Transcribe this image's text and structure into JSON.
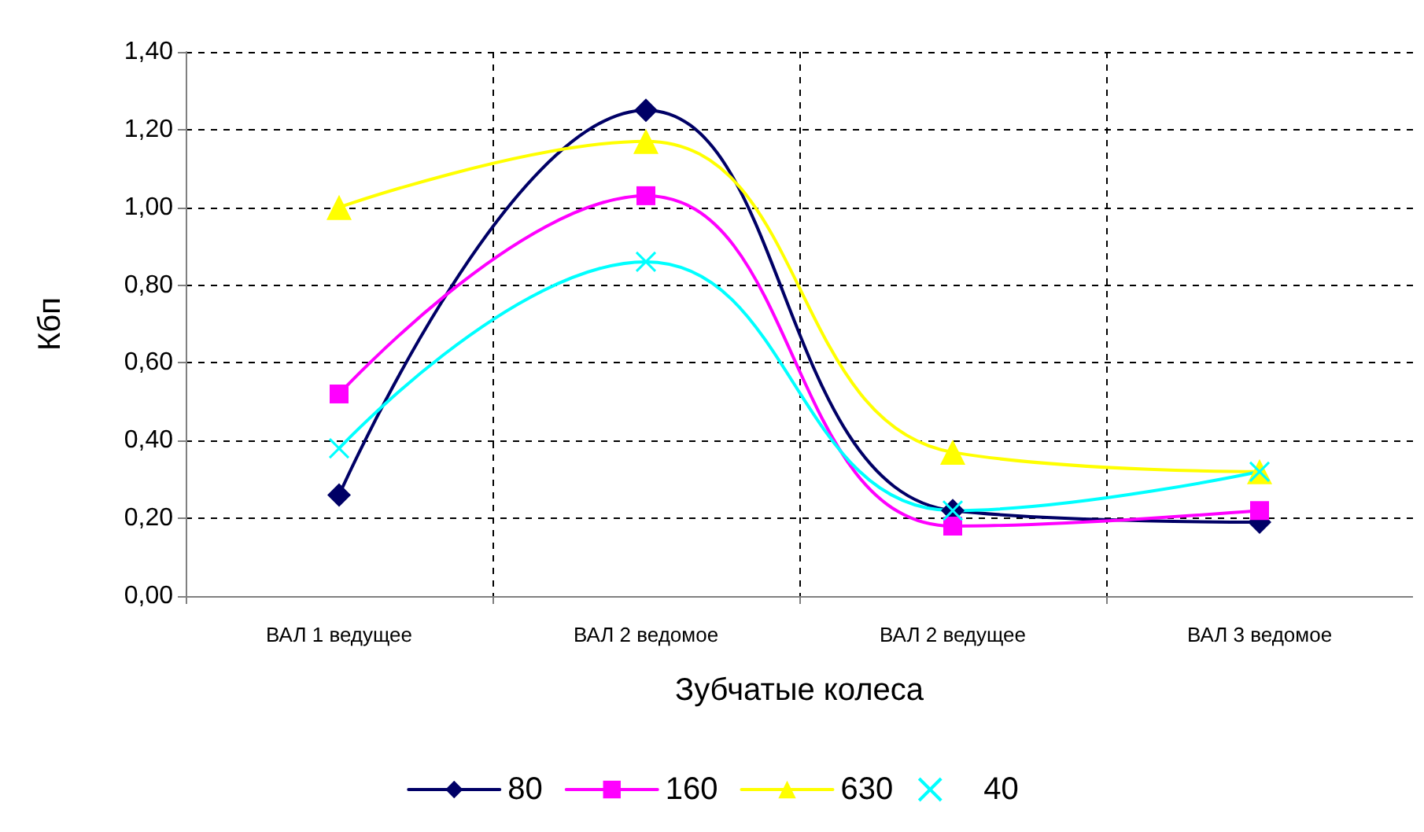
{
  "chart_data": {
    "type": "line",
    "xlabel": "Зубчатые колеса",
    "ylabel": "Кбп",
    "categories": [
      "ВАЛ 1 ведущее",
      "ВАЛ 2 ведомое",
      "ВАЛ 2 ведущее",
      "ВАЛ 3 ведомое"
    ],
    "series": [
      {
        "name": "80",
        "color": "#000066",
        "marker": "diamond",
        "values": [
          0.26,
          1.25,
          0.22,
          0.19
        ]
      },
      {
        "name": "160",
        "color": "#ff00ff",
        "marker": "square",
        "values": [
          0.52,
          1.03,
          0.18,
          0.22
        ]
      },
      {
        "name": "630",
        "color": "#ffff00",
        "marker": "triangle",
        "values": [
          1.0,
          1.17,
          0.37,
          0.32
        ]
      },
      {
        "name": "40",
        "color": "#00ffff",
        "marker": "cross",
        "values": [
          0.38,
          0.86,
          0.22,
          0.32
        ]
      }
    ],
    "ylim": [
      0,
      1.4
    ],
    "yticks": [
      {
        "value": 0,
        "label": "0,00"
      },
      {
        "value": 0.2,
        "label": "0,20"
      },
      {
        "value": 0.4,
        "label": "0,40"
      },
      {
        "value": 0.6,
        "label": "0,60"
      },
      {
        "value": 0.8,
        "label": "0,80"
      },
      {
        "value": 1.0,
        "label": "1,00"
      },
      {
        "value": 1.2,
        "label": "1,20"
      },
      {
        "value": 1.4,
        "label": "1,40"
      }
    ],
    "grid": true,
    "legend": "bottom",
    "line_style": "solid"
  }
}
